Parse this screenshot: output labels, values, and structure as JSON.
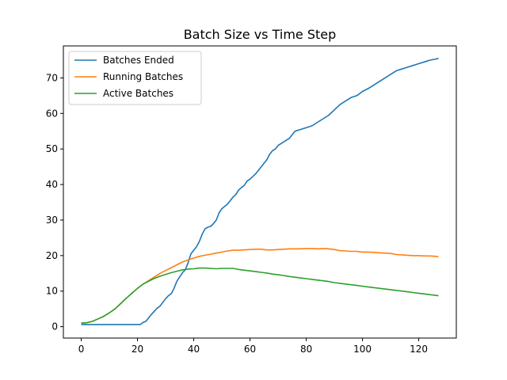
{
  "chart_data": {
    "type": "line",
    "title": "Batch Size vs Time Step",
    "xlabel": "",
    "ylabel": "",
    "xlim": [
      -6.35,
      133.35
    ],
    "ylim": [
      -3.2,
      79.0
    ],
    "xticks": [
      0,
      20,
      40,
      60,
      80,
      100,
      120
    ],
    "yticks": [
      0,
      10,
      20,
      30,
      40,
      50,
      60,
      70
    ],
    "grid": false,
    "legend_position": "top-left",
    "series": [
      {
        "name": "Batches Ended",
        "color": "#1f77b4",
        "points": [
          [
            0,
            0.6
          ],
          [
            5,
            0.6
          ],
          [
            10,
            0.6
          ],
          [
            15,
            0.6
          ],
          [
            21,
            0.6
          ],
          [
            22,
            1.2
          ],
          [
            23,
            1.5
          ],
          [
            25,
            3.5
          ],
          [
            27,
            5.2
          ],
          [
            28,
            5.8
          ],
          [
            30,
            7.9
          ],
          [
            31,
            8.7
          ],
          [
            32,
            9.3
          ],
          [
            33,
            10.8
          ],
          [
            34,
            12.8
          ],
          [
            35,
            14.0
          ],
          [
            36,
            15.2
          ],
          [
            37,
            16.0
          ],
          [
            38,
            18.0
          ],
          [
            39,
            20.5
          ],
          [
            40,
            21.5
          ],
          [
            41,
            22.5
          ],
          [
            42,
            24.0
          ],
          [
            43,
            26.0
          ],
          [
            44,
            27.5
          ],
          [
            45,
            28.0
          ],
          [
            46,
            28.2
          ],
          [
            47,
            29.0
          ],
          [
            48,
            30.0
          ],
          [
            49,
            32.0
          ],
          [
            50,
            33.2
          ],
          [
            52,
            34.5
          ],
          [
            54,
            36.5
          ],
          [
            55,
            37.2
          ],
          [
            56,
            38.5
          ],
          [
            58,
            39.8
          ],
          [
            59,
            41.0
          ],
          [
            60,
            41.5
          ],
          [
            62,
            43.0
          ],
          [
            64,
            45.0
          ],
          [
            66,
            47.0
          ],
          [
            67,
            48.5
          ],
          [
            68,
            49.5
          ],
          [
            69,
            50.0
          ],
          [
            70,
            51.0
          ],
          [
            72,
            52.0
          ],
          [
            74,
            53.0
          ],
          [
            75,
            54.0
          ],
          [
            76,
            55.0
          ],
          [
            78,
            55.5
          ],
          [
            80,
            56.0
          ],
          [
            82,
            56.5
          ],
          [
            84,
            57.5
          ],
          [
            86,
            58.5
          ],
          [
            88,
            59.5
          ],
          [
            90,
            61.0
          ],
          [
            92,
            62.5
          ],
          [
            94,
            63.5
          ],
          [
            96,
            64.5
          ],
          [
            98,
            65.0
          ],
          [
            100,
            66.2
          ],
          [
            102,
            67.0
          ],
          [
            104,
            68.0
          ],
          [
            106,
            69.0
          ],
          [
            108,
            70.0
          ],
          [
            110,
            71.0
          ],
          [
            112,
            72.0
          ],
          [
            114,
            72.5
          ],
          [
            116,
            73.0
          ],
          [
            118,
            73.5
          ],
          [
            120,
            74.0
          ],
          [
            122,
            74.5
          ],
          [
            124,
            75.0
          ],
          [
            126,
            75.3
          ],
          [
            127,
            75.5
          ]
        ]
      },
      {
        "name": "Running Batches",
        "color": "#ff7f0e",
        "points": [
          [
            0,
            1.0
          ],
          [
            2,
            1.1
          ],
          [
            4,
            1.5
          ],
          [
            6,
            2.2
          ],
          [
            8,
            2.9
          ],
          [
            10,
            3.9
          ],
          [
            12,
            5.0
          ],
          [
            14,
            6.5
          ],
          [
            16,
            8.0
          ],
          [
            18,
            9.4
          ],
          [
            20,
            10.8
          ],
          [
            22,
            12.0
          ],
          [
            24,
            13.0
          ],
          [
            26,
            14.0
          ],
          [
            28,
            15.0
          ],
          [
            30,
            15.8
          ],
          [
            32,
            16.6
          ],
          [
            34,
            17.4
          ],
          [
            36,
            18.2
          ],
          [
            38,
            18.8
          ],
          [
            40,
            19.3
          ],
          [
            42,
            19.8
          ],
          [
            44,
            20.1
          ],
          [
            46,
            20.4
          ],
          [
            48,
            20.7
          ],
          [
            50,
            21.0
          ],
          [
            52,
            21.3
          ],
          [
            54,
            21.5
          ],
          [
            56,
            21.5
          ],
          [
            58,
            21.6
          ],
          [
            60,
            21.7
          ],
          [
            62,
            21.8
          ],
          [
            64,
            21.8
          ],
          [
            66,
            21.6
          ],
          [
            68,
            21.6
          ],
          [
            70,
            21.7
          ],
          [
            72,
            21.8
          ],
          [
            74,
            21.9
          ],
          [
            76,
            21.9
          ],
          [
            78,
            21.9
          ],
          [
            80,
            22.0
          ],
          [
            82,
            22.0
          ],
          [
            84,
            21.9
          ],
          [
            86,
            22.0
          ],
          [
            88,
            21.9
          ],
          [
            90,
            21.7
          ],
          [
            92,
            21.4
          ],
          [
            94,
            21.3
          ],
          [
            96,
            21.2
          ],
          [
            98,
            21.2
          ],
          [
            100,
            21.0
          ],
          [
            102,
            21.0
          ],
          [
            104,
            20.9
          ],
          [
            106,
            20.8
          ],
          [
            108,
            20.7
          ],
          [
            110,
            20.6
          ],
          [
            112,
            20.3
          ],
          [
            114,
            20.2
          ],
          [
            116,
            20.1
          ],
          [
            118,
            20.0
          ],
          [
            120,
            20.0
          ],
          [
            122,
            19.9
          ],
          [
            124,
            19.9
          ],
          [
            126,
            19.8
          ],
          [
            127,
            19.7
          ]
        ]
      },
      {
        "name": "Active Batches",
        "color": "#2ca02c",
        "points": [
          [
            0,
            1.0
          ],
          [
            2,
            1.1
          ],
          [
            4,
            1.5
          ],
          [
            6,
            2.2
          ],
          [
            8,
            2.9
          ],
          [
            10,
            3.9
          ],
          [
            12,
            5.0
          ],
          [
            14,
            6.5
          ],
          [
            16,
            8.0
          ],
          [
            18,
            9.4
          ],
          [
            20,
            10.8
          ],
          [
            22,
            12.0
          ],
          [
            24,
            12.8
          ],
          [
            26,
            13.6
          ],
          [
            28,
            14.2
          ],
          [
            30,
            14.7
          ],
          [
            32,
            15.2
          ],
          [
            34,
            15.6
          ],
          [
            36,
            16.0
          ],
          [
            38,
            16.2
          ],
          [
            40,
            16.3
          ],
          [
            42,
            16.5
          ],
          [
            44,
            16.5
          ],
          [
            46,
            16.4
          ],
          [
            48,
            16.3
          ],
          [
            50,
            16.4
          ],
          [
            52,
            16.4
          ],
          [
            54,
            16.4
          ],
          [
            56,
            16.1
          ],
          [
            58,
            15.9
          ],
          [
            60,
            15.7
          ],
          [
            62,
            15.5
          ],
          [
            64,
            15.3
          ],
          [
            66,
            15.1
          ],
          [
            68,
            14.8
          ],
          [
            70,
            14.6
          ],
          [
            72,
            14.4
          ],
          [
            74,
            14.1
          ],
          [
            76,
            13.9
          ],
          [
            78,
            13.7
          ],
          [
            80,
            13.5
          ],
          [
            82,
            13.3
          ],
          [
            84,
            13.1
          ],
          [
            86,
            12.9
          ],
          [
            88,
            12.7
          ],
          [
            90,
            12.4
          ],
          [
            92,
            12.2
          ],
          [
            94,
            12.0
          ],
          [
            96,
            11.8
          ],
          [
            98,
            11.6
          ],
          [
            100,
            11.4
          ],
          [
            102,
            11.2
          ],
          [
            104,
            11.0
          ],
          [
            106,
            10.8
          ],
          [
            108,
            10.6
          ],
          [
            110,
            10.4
          ],
          [
            112,
            10.2
          ],
          [
            114,
            10.0
          ],
          [
            116,
            9.8
          ],
          [
            118,
            9.6
          ],
          [
            120,
            9.4
          ],
          [
            122,
            9.2
          ],
          [
            124,
            9.0
          ],
          [
            126,
            8.8
          ],
          [
            127,
            8.7
          ]
        ]
      }
    ]
  }
}
